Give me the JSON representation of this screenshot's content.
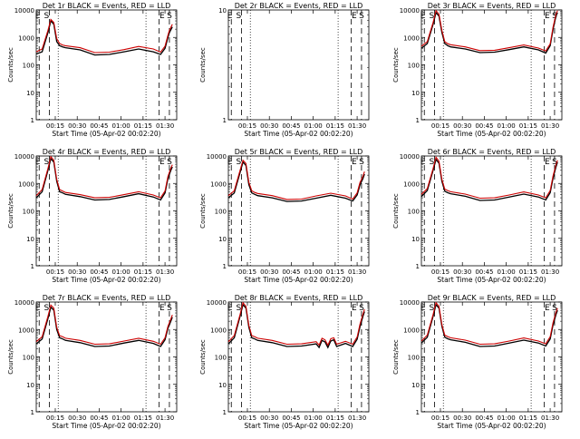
{
  "chart_data": [
    {
      "type": "line",
      "title": "Det 1r BLACK = Events, RED = LLD",
      "xlabel": "Start Time (05-Apr-02 00:02:20)",
      "ylabel": "Counts/sec",
      "x_ticks": [
        "00:15",
        "00:30",
        "00:45",
        "01:00",
        "01:15",
        "01:30"
      ],
      "y_ticks": [
        "1",
        "10",
        "100",
        "1000",
        "10000"
      ],
      "y_scale": "log",
      "ylim": [
        1,
        10000
      ],
      "markers": [
        "E",
        "S",
        "E",
        "S"
      ],
      "series": [
        {
          "name": "Events",
          "color": "#000000",
          "x": [
            0,
            4,
            8,
            10,
            12,
            14,
            16,
            18,
            20,
            30,
            40,
            50,
            60,
            70,
            80,
            85,
            88,
            90,
            91,
            93
          ],
          "y": [
            250,
            300,
            1500,
            4000,
            3000,
            700,
            500,
            450,
            420,
            350,
            230,
            240,
            300,
            380,
            300,
            240,
            400,
            1000,
            1500,
            2400
          ]
        },
        {
          "name": "LLD",
          "color": "#cc0000",
          "x": [
            0,
            4,
            8,
            10,
            12,
            14,
            16,
            18,
            20,
            30,
            40,
            50,
            60,
            70,
            80,
            85,
            88,
            90,
            91,
            93
          ],
          "y": [
            300,
            380,
            1800,
            4500,
            3500,
            900,
            600,
            530,
            500,
            420,
            280,
            290,
            360,
            470,
            380,
            290,
            480,
            1200,
            1800,
            3000
          ]
        }
      ]
    },
    {
      "type": "line",
      "title": "Det 2r BLACK = Events, RED = LLD",
      "xlabel": "Start Time (05-Apr-02 00:02:20)",
      "ylabel": "Counts/sec",
      "x_ticks": [
        "00:15",
        "00:30",
        "00:45",
        "01:00",
        "01:15",
        "01:30"
      ],
      "y_ticks": [
        "1",
        "10"
      ],
      "y_scale": "log",
      "ylim": [
        1,
        10
      ],
      "markers": [
        "E",
        "S",
        "E",
        "S"
      ],
      "series": []
    },
    {
      "type": "line",
      "title": "Det 3r BLACK = Events, RED = LLD",
      "xlabel": "Start Time (05-Apr-02 00:02:20)",
      "ylabel": "Counts/sec",
      "x_ticks": [
        "00:15",
        "00:30",
        "00:45",
        "01:00",
        "01:15",
        "01:30"
      ],
      "y_ticks": [
        "1",
        "10",
        "100",
        "1000",
        "10000"
      ],
      "y_scale": "log",
      "ylim": [
        1,
        10000
      ],
      "markers": [
        "E",
        "S",
        "E",
        "S"
      ],
      "series": [
        {
          "name": "Events",
          "color": "#000000",
          "x": [
            0,
            4,
            8,
            10,
            12,
            14,
            16,
            18,
            20,
            30,
            40,
            50,
            60,
            70,
            80,
            85,
            88,
            90,
            92,
            93
          ],
          "y": [
            400,
            600,
            3000,
            8000,
            6000,
            1500,
            600,
            500,
            450,
            380,
            280,
            290,
            360,
            450,
            350,
            270,
            500,
            2000,
            6000,
            8000
          ]
        },
        {
          "name": "LLD",
          "color": "#cc0000",
          "x": [
            0,
            4,
            8,
            10,
            12,
            14,
            16,
            18,
            20,
            30,
            40,
            50,
            60,
            70,
            80,
            85,
            88,
            90,
            92,
            93
          ],
          "y": [
            480,
            700,
            3500,
            9500,
            7000,
            1800,
            700,
            590,
            540,
            450,
            330,
            340,
            420,
            530,
            410,
            320,
            580,
            2400,
            7000,
            9500
          ]
        }
      ]
    },
    {
      "type": "line",
      "title": "Det 4r BLACK = Events, RED = LLD",
      "xlabel": "Start Time (05-Apr-02 00:02:20)",
      "ylabel": "Counts/sec",
      "x_ticks": [
        "00:15",
        "00:30",
        "00:45",
        "01:00",
        "01:15",
        "01:30"
      ],
      "y_ticks": [
        "1",
        "10",
        "100",
        "1000",
        "10000"
      ],
      "y_scale": "log",
      "ylim": [
        1,
        10000
      ],
      "markers": [
        "E",
        "S",
        "E",
        "S"
      ],
      "series": [
        {
          "name": "Events",
          "color": "#000000",
          "x": [
            0,
            4,
            8,
            10,
            12,
            14,
            16,
            18,
            20,
            30,
            40,
            50,
            60,
            70,
            80,
            85,
            88,
            90,
            92,
            93
          ],
          "y": [
            300,
            500,
            3000,
            8000,
            6000,
            1200,
            500,
            450,
            400,
            330,
            250,
            260,
            330,
            420,
            320,
            250,
            450,
            1500,
            3000,
            4000
          ]
        },
        {
          "name": "LLD",
          "color": "#cc0000",
          "x": [
            0,
            4,
            8,
            10,
            12,
            14,
            16,
            18,
            20,
            30,
            40,
            50,
            60,
            70,
            80,
            85,
            88,
            90,
            92,
            93
          ],
          "y": [
            360,
            600,
            3500,
            9500,
            7000,
            1400,
            600,
            530,
            470,
            390,
            300,
            310,
            390,
            500,
            380,
            300,
            530,
            1800,
            3600,
            4800
          ]
        }
      ]
    },
    {
      "type": "line",
      "title": "Det 5r BLACK = Events, RED = LLD",
      "xlabel": "Start Time (05-Apr-02 00:02:20)",
      "ylabel": "Counts/sec",
      "x_ticks": [
        "00:15",
        "00:30",
        "00:45",
        "01:00",
        "01:15",
        "01:30"
      ],
      "y_ticks": [
        "1",
        "10",
        "100",
        "1000",
        "10000"
      ],
      "y_scale": "log",
      "ylim": [
        1,
        10000
      ],
      "markers": [
        "E",
        "S",
        "E",
        "S"
      ],
      "series": [
        {
          "name": "Events",
          "color": "#000000",
          "x": [
            0,
            4,
            8,
            10,
            12,
            14,
            16,
            18,
            20,
            30,
            40,
            50,
            60,
            70,
            80,
            85,
            88,
            90,
            92,
            93
          ],
          "y": [
            300,
            450,
            2500,
            6000,
            4500,
            900,
            450,
            400,
            360,
            300,
            220,
            230,
            290,
            370,
            290,
            230,
            380,
            900,
            1500,
            2200
          ]
        },
        {
          "name": "LLD",
          "color": "#cc0000",
          "x": [
            0,
            4,
            8,
            10,
            12,
            14,
            16,
            18,
            20,
            30,
            40,
            50,
            60,
            70,
            80,
            85,
            88,
            90,
            92,
            93
          ],
          "y": [
            360,
            540,
            3000,
            7000,
            5300,
            1100,
            540,
            470,
            430,
            360,
            260,
            270,
            350,
            440,
            350,
            270,
            450,
            1100,
            1800,
            2700
          ]
        }
      ]
    },
    {
      "type": "line",
      "title": "Det 6r BLACK = Events, RED = LLD",
      "xlabel": "Start Time (05-Apr-02 00:02:20)",
      "ylabel": "Counts/sec",
      "x_ticks": [
        "00:15",
        "00:30",
        "00:45",
        "01:00",
        "01:15",
        "01:30"
      ],
      "y_ticks": [
        "1",
        "10",
        "100",
        "1000",
        "10000"
      ],
      "y_scale": "log",
      "ylim": [
        1,
        10000
      ],
      "markers": [
        "E",
        "S",
        "E",
        "S"
      ],
      "series": [
        {
          "name": "Events",
          "color": "#000000",
          "x": [
            0,
            4,
            8,
            10,
            12,
            14,
            16,
            18,
            20,
            30,
            40,
            50,
            60,
            70,
            80,
            85,
            88,
            90,
            92,
            93
          ],
          "y": [
            330,
            550,
            3000,
            7500,
            5500,
            1200,
            520,
            460,
            420,
            340,
            240,
            250,
            320,
            410,
            320,
            250,
            460,
            1600,
            4000,
            6000
          ]
        },
        {
          "name": "LLD",
          "color": "#cc0000",
          "x": [
            0,
            4,
            8,
            10,
            12,
            14,
            16,
            18,
            20,
            30,
            40,
            50,
            60,
            70,
            80,
            85,
            88,
            90,
            92,
            93
          ],
          "y": [
            400,
            650,
            3500,
            9000,
            6500,
            1400,
            620,
            550,
            500,
            410,
            290,
            300,
            380,
            490,
            380,
            300,
            550,
            1900,
            4800,
            7000
          ]
        }
      ]
    },
    {
      "type": "line",
      "title": "Det 7r BLACK = Events, RED = LLD",
      "xlabel": "Start Time (05-Apr-02 00:02:20)",
      "ylabel": "Counts/sec",
      "x_ticks": [
        "00:15",
        "00:30",
        "00:45",
        "01:00",
        "01:15",
        "01:30"
      ],
      "y_ticks": [
        "1",
        "10",
        "100",
        "1000",
        "10000"
      ],
      "y_scale": "log",
      "ylim": [
        1,
        10000
      ],
      "markers": [
        "E",
        "S",
        "E",
        "S"
      ],
      "series": [
        {
          "name": "Events",
          "color": "#000000",
          "x": [
            0,
            4,
            8,
            10,
            12,
            14,
            16,
            18,
            20,
            30,
            40,
            50,
            60,
            70,
            80,
            85,
            88,
            90,
            92,
            93
          ],
          "y": [
            300,
            450,
            2500,
            6500,
            5000,
            1000,
            500,
            450,
            400,
            330,
            240,
            250,
            320,
            400,
            310,
            240,
            420,
            1100,
            2000,
            2800
          ]
        },
        {
          "name": "LLD",
          "color": "#cc0000",
          "x": [
            0,
            4,
            8,
            10,
            12,
            14,
            16,
            18,
            20,
            30,
            40,
            50,
            60,
            70,
            80,
            85,
            88,
            90,
            92,
            93
          ],
          "y": [
            360,
            540,
            3000,
            7800,
            6000,
            1200,
            600,
            540,
            480,
            400,
            290,
            300,
            380,
            480,
            370,
            290,
            500,
            1300,
            2400,
            3400
          ]
        }
      ]
    },
    {
      "type": "line",
      "title": "Det 8r BLACK = Events, RED = LLD",
      "xlabel": "Start Time (05-Apr-02 00:02:20)",
      "ylabel": "Counts/sec",
      "x_ticks": [
        "00:15",
        "00:30",
        "00:45",
        "01:00",
        "01:15",
        "01:30"
      ],
      "y_ticks": [
        "1",
        "10",
        "100",
        "1000",
        "10000"
      ],
      "y_scale": "log",
      "ylim": [
        1,
        10000
      ],
      "markers": [
        "E",
        "S",
        "E",
        "S"
      ],
      "series": [
        {
          "name": "Events",
          "color": "#000000",
          "x": [
            0,
            4,
            8,
            10,
            12,
            14,
            16,
            18,
            20,
            30,
            40,
            50,
            60,
            62,
            64,
            66,
            68,
            70,
            72,
            74,
            80,
            85,
            88,
            90,
            92,
            93
          ],
          "y": [
            300,
            500,
            3000,
            8000,
            6000,
            1200,
            500,
            450,
            400,
            330,
            240,
            250,
            300,
            220,
            400,
            350,
            220,
            380,
            420,
            240,
            310,
            240,
            440,
            1300,
            3000,
            4500
          ]
        },
        {
          "name": "LLD",
          "color": "#cc0000",
          "x": [
            0,
            4,
            8,
            10,
            12,
            14,
            16,
            18,
            20,
            30,
            40,
            50,
            60,
            62,
            64,
            66,
            68,
            70,
            72,
            74,
            80,
            85,
            88,
            90,
            92,
            93
          ],
          "y": [
            360,
            600,
            3500,
            9500,
            7000,
            1400,
            600,
            540,
            480,
            400,
            290,
            300,
            360,
            270,
            480,
            420,
            270,
            460,
            500,
            290,
            370,
            290,
            530,
            1600,
            3600,
            5400
          ]
        }
      ]
    },
    {
      "type": "line",
      "title": "Det 9r BLACK = Events, RED = LLD",
      "xlabel": "Start Time (05-Apr-02 00:02:20)",
      "ylabel": "Counts/sec",
      "x_ticks": [
        "00:15",
        "00:30",
        "00:45",
        "01:00",
        "01:15",
        "01:30"
      ],
      "y_ticks": [
        "1",
        "10",
        "100",
        "1000",
        "10000"
      ],
      "y_scale": "log",
      "ylim": [
        1,
        10000
      ],
      "markers": [
        "E",
        "S",
        "E",
        "S"
      ],
      "series": [
        {
          "name": "Events",
          "color": "#000000",
          "x": [
            0,
            4,
            8,
            10,
            12,
            14,
            16,
            18,
            20,
            30,
            40,
            50,
            60,
            70,
            80,
            85,
            88,
            90,
            92,
            93
          ],
          "y": [
            320,
            520,
            3000,
            8000,
            6000,
            1300,
            520,
            460,
            420,
            340,
            240,
            250,
            320,
            410,
            320,
            250,
            450,
            1500,
            3500,
            5000
          ]
        },
        {
          "name": "LLD",
          "color": "#cc0000",
          "x": [
            0,
            4,
            8,
            10,
            12,
            14,
            16,
            18,
            20,
            30,
            40,
            50,
            60,
            70,
            80,
            85,
            88,
            90,
            92,
            93
          ],
          "y": [
            380,
            620,
            3500,
            9500,
            7000,
            1500,
            620,
            550,
            500,
            410,
            290,
            300,
            380,
            490,
            380,
            300,
            540,
            1800,
            4200,
            6000
          ]
        }
      ]
    }
  ]
}
